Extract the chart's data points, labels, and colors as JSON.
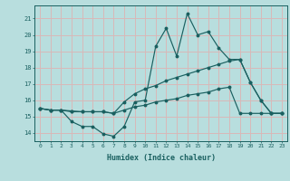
{
  "xlabel": "Humidex (Indice chaleur)",
  "xlim": [
    -0.5,
    23.5
  ],
  "ylim": [
    13.5,
    21.8
  ],
  "yticks": [
    14,
    15,
    16,
    17,
    18,
    19,
    20,
    21
  ],
  "xticks": [
    0,
    1,
    2,
    3,
    4,
    5,
    6,
    7,
    8,
    9,
    10,
    11,
    12,
    13,
    14,
    15,
    16,
    17,
    18,
    19,
    20,
    21,
    22,
    23
  ],
  "background_color": "#b8dede",
  "grid_color": "#d8b8b8",
  "line_color": "#1a6060",
  "line1_x": [
    0,
    1,
    2,
    3,
    4,
    5,
    6,
    7,
    8,
    9,
    10,
    11,
    12,
    13,
    14,
    15,
    16,
    17,
    18,
    19,
    20,
    21,
    22,
    23
  ],
  "line1_y": [
    15.5,
    15.4,
    15.4,
    14.7,
    14.4,
    14.4,
    13.95,
    13.8,
    14.4,
    15.9,
    16.0,
    19.3,
    20.4,
    18.7,
    21.3,
    20.0,
    20.2,
    19.2,
    18.5,
    18.5,
    17.1,
    16.0,
    15.2,
    15.2
  ],
  "line2_x": [
    0,
    1,
    2,
    3,
    4,
    5,
    6,
    7,
    8,
    9,
    10,
    11,
    12,
    13,
    14,
    15,
    16,
    17,
    18,
    19,
    20,
    21,
    22,
    23
  ],
  "line2_y": [
    15.5,
    15.4,
    15.4,
    15.35,
    15.3,
    15.3,
    15.3,
    15.2,
    15.9,
    16.4,
    16.7,
    16.9,
    17.2,
    17.4,
    17.6,
    17.8,
    18.0,
    18.2,
    18.4,
    18.5,
    17.1,
    16.0,
    15.2,
    15.2
  ],
  "line3_x": [
    0,
    1,
    2,
    3,
    4,
    5,
    6,
    7,
    8,
    9,
    10,
    11,
    12,
    13,
    14,
    15,
    16,
    17,
    18,
    19,
    20,
    21,
    22,
    23
  ],
  "line3_y": [
    15.5,
    15.4,
    15.4,
    15.3,
    15.3,
    15.3,
    15.3,
    15.2,
    15.4,
    15.6,
    15.7,
    15.9,
    16.0,
    16.1,
    16.3,
    16.4,
    16.5,
    16.7,
    16.8,
    15.2,
    15.2,
    15.2,
    15.2,
    15.2
  ]
}
